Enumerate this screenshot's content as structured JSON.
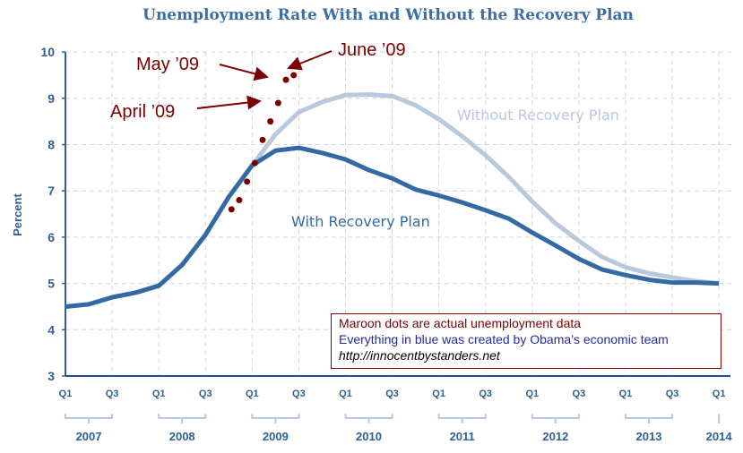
{
  "chart_data": {
    "type": "line",
    "title": "Unemployment Rate With and Without the Recovery Plan",
    "ylabel": "Percent",
    "ylim": [
      3,
      10
    ],
    "yticks": [
      "3",
      "4",
      "5",
      "6",
      "7",
      "8",
      "9",
      "10"
    ],
    "grid": true,
    "x_quarter_labels": [
      "Q1",
      "Q3",
      "Q1",
      "Q3",
      "Q1",
      "Q3",
      "Q1",
      "Q3",
      "Q1",
      "Q3",
      "Q1",
      "Q3",
      "Q1",
      "Q3",
      "Q1"
    ],
    "x_years": [
      "2007",
      "2008",
      "2009",
      "2010",
      "2011",
      "2012",
      "2013",
      "2014"
    ],
    "x": [
      "2007Q1",
      "2007Q2",
      "2007Q3",
      "2007Q4",
      "2008Q1",
      "2008Q2",
      "2008Q3",
      "2008Q4",
      "2009Q1",
      "2009Q2",
      "2009Q3",
      "2009Q4",
      "2010Q1",
      "2010Q2",
      "2010Q3",
      "2010Q4",
      "2011Q1",
      "2011Q2",
      "2011Q3",
      "2011Q4",
      "2012Q1",
      "2012Q2",
      "2012Q3",
      "2012Q4",
      "2013Q1",
      "2013Q2",
      "2013Q3",
      "2013Q4",
      "2014Q1"
    ],
    "series": [
      {
        "name": "With Recovery Plan",
        "color": "#336aa3",
        "values": [
          4.5,
          4.55,
          4.7,
          4.8,
          4.95,
          5.4,
          6.05,
          6.87,
          7.55,
          7.87,
          7.93,
          7.82,
          7.68,
          7.45,
          7.27,
          7.03,
          6.9,
          6.75,
          6.58,
          6.4,
          6.1,
          5.82,
          5.53,
          5.3,
          5.18,
          5.08,
          5.02,
          5.02,
          5.0
        ]
      },
      {
        "name": "Without Recovery Plan",
        "color": "#b8c9de",
        "values": [
          4.5,
          4.55,
          4.7,
          4.8,
          4.95,
          5.4,
          6.05,
          6.87,
          7.55,
          8.22,
          8.7,
          8.92,
          9.07,
          9.08,
          9.05,
          8.85,
          8.55,
          8.18,
          7.77,
          7.3,
          6.77,
          6.3,
          5.92,
          5.57,
          5.35,
          5.22,
          5.13,
          5.05,
          5.0
        ]
      }
    ],
    "actual_data": {
      "color": "#7a0000",
      "months": [
        "2008-10",
        "2008-11",
        "2008-12",
        "2009-01",
        "2009-02",
        "2009-03",
        "2009-04",
        "2009-05",
        "2009-06"
      ],
      "values": [
        6.6,
        6.8,
        7.2,
        7.6,
        8.1,
        8.5,
        8.9,
        9.4,
        9.5
      ]
    },
    "annotations": [
      "May ’09",
      "June ’09",
      "April ’09"
    ]
  },
  "note": {
    "line1": "Maroon dots are actual unemployment data",
    "line2": "Everything in blue was created by Obama’s economic team",
    "line3": "http://innocentbystanders.net"
  }
}
